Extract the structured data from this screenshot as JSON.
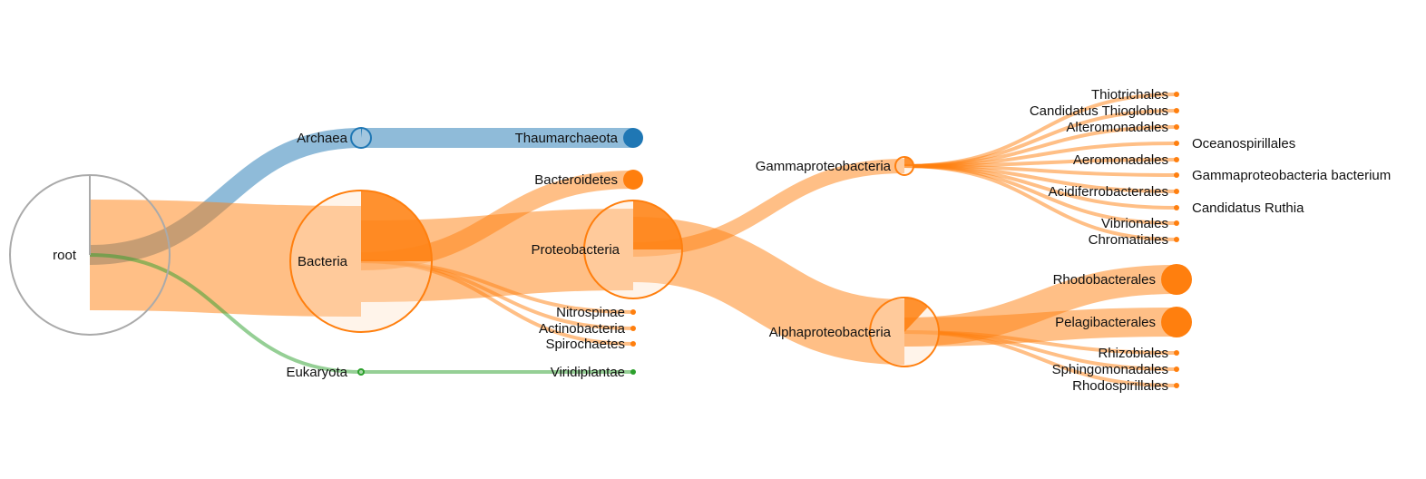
{
  "colors": {
    "bacteria": "#ff7f0e",
    "archaea": "#1f77b4",
    "eukaryota": "#2ca02c",
    "root": "#aaaaaa"
  },
  "tree": {
    "name": "root",
    "group": "root",
    "fraction": 1.0,
    "children": [
      {
        "name": "Archaea",
        "group": "archaea",
        "fraction": 0.02,
        "children": [
          {
            "name": "Thaumarchaeota",
            "group": "archaea",
            "fraction": 1.0
          }
        ]
      },
      {
        "name": "Bacteria",
        "group": "bacteria",
        "fraction": 0.25,
        "children": [
          {
            "name": "Bacteroidetes",
            "group": "bacteria",
            "fraction": 1.0
          },
          {
            "name": "Proteobacteria",
            "group": "bacteria",
            "fraction": 0.25,
            "children": [
              {
                "name": "Gammaproteobacteria",
                "group": "bacteria",
                "fraction": 0.25,
                "children": [
                  {
                    "name": "Thiotrichales",
                    "group": "bacteria",
                    "fraction": 1.0
                  },
                  {
                    "name": "Candidatus Thioglobus",
                    "group": "bacteria",
                    "fraction": 1.0
                  },
                  {
                    "name": "Alteromonadales",
                    "group": "bacteria",
                    "fraction": 1.0
                  },
                  {
                    "name": "Oceanospirillales",
                    "group": "bacteria",
                    "fraction": 1.0
                  },
                  {
                    "name": "Aeromonadales",
                    "group": "bacteria",
                    "fraction": 1.0
                  },
                  {
                    "name": "Gammaproteobacteria bacterium",
                    "group": "bacteria",
                    "fraction": 1.0
                  },
                  {
                    "name": "Acidiferrobacterales",
                    "group": "bacteria",
                    "fraction": 1.0
                  },
                  {
                    "name": "Candidatus Ruthia",
                    "group": "bacteria",
                    "fraction": 1.0
                  },
                  {
                    "name": "Vibrionales",
                    "group": "bacteria",
                    "fraction": 1.0
                  },
                  {
                    "name": "Chromatiales",
                    "group": "bacteria",
                    "fraction": 1.0
                  }
                ]
              },
              {
                "name": "Alphaproteobacteria",
                "group": "bacteria",
                "fraction": 0.12,
                "children": [
                  {
                    "name": "Rhodobacterales",
                    "group": "bacteria",
                    "fraction": 1.0
                  },
                  {
                    "name": "Pelagibacterales",
                    "group": "bacteria",
                    "fraction": 1.0
                  },
                  {
                    "name": "Rhizobiales",
                    "group": "bacteria",
                    "fraction": 1.0
                  },
                  {
                    "name": "Sphingomonadales",
                    "group": "bacteria",
                    "fraction": 1.0
                  },
                  {
                    "name": "Rhodospirillales",
                    "group": "bacteria",
                    "fraction": 1.0
                  }
                ]
              }
            ]
          },
          {
            "name": "Nitrospinae",
            "group": "bacteria",
            "fraction": 1.0
          },
          {
            "name": "Actinobacteria",
            "group": "bacteria",
            "fraction": 1.0
          },
          {
            "name": "Spirochaetes",
            "group": "bacteria",
            "fraction": 1.0
          }
        ]
      },
      {
        "name": "Eukaryota",
        "group": "eukaryota",
        "fraction": 1.0,
        "children": [
          {
            "name": "Viridiplantae",
            "group": "eukaryota",
            "fraction": 1.0
          }
        ]
      }
    ]
  }
}
